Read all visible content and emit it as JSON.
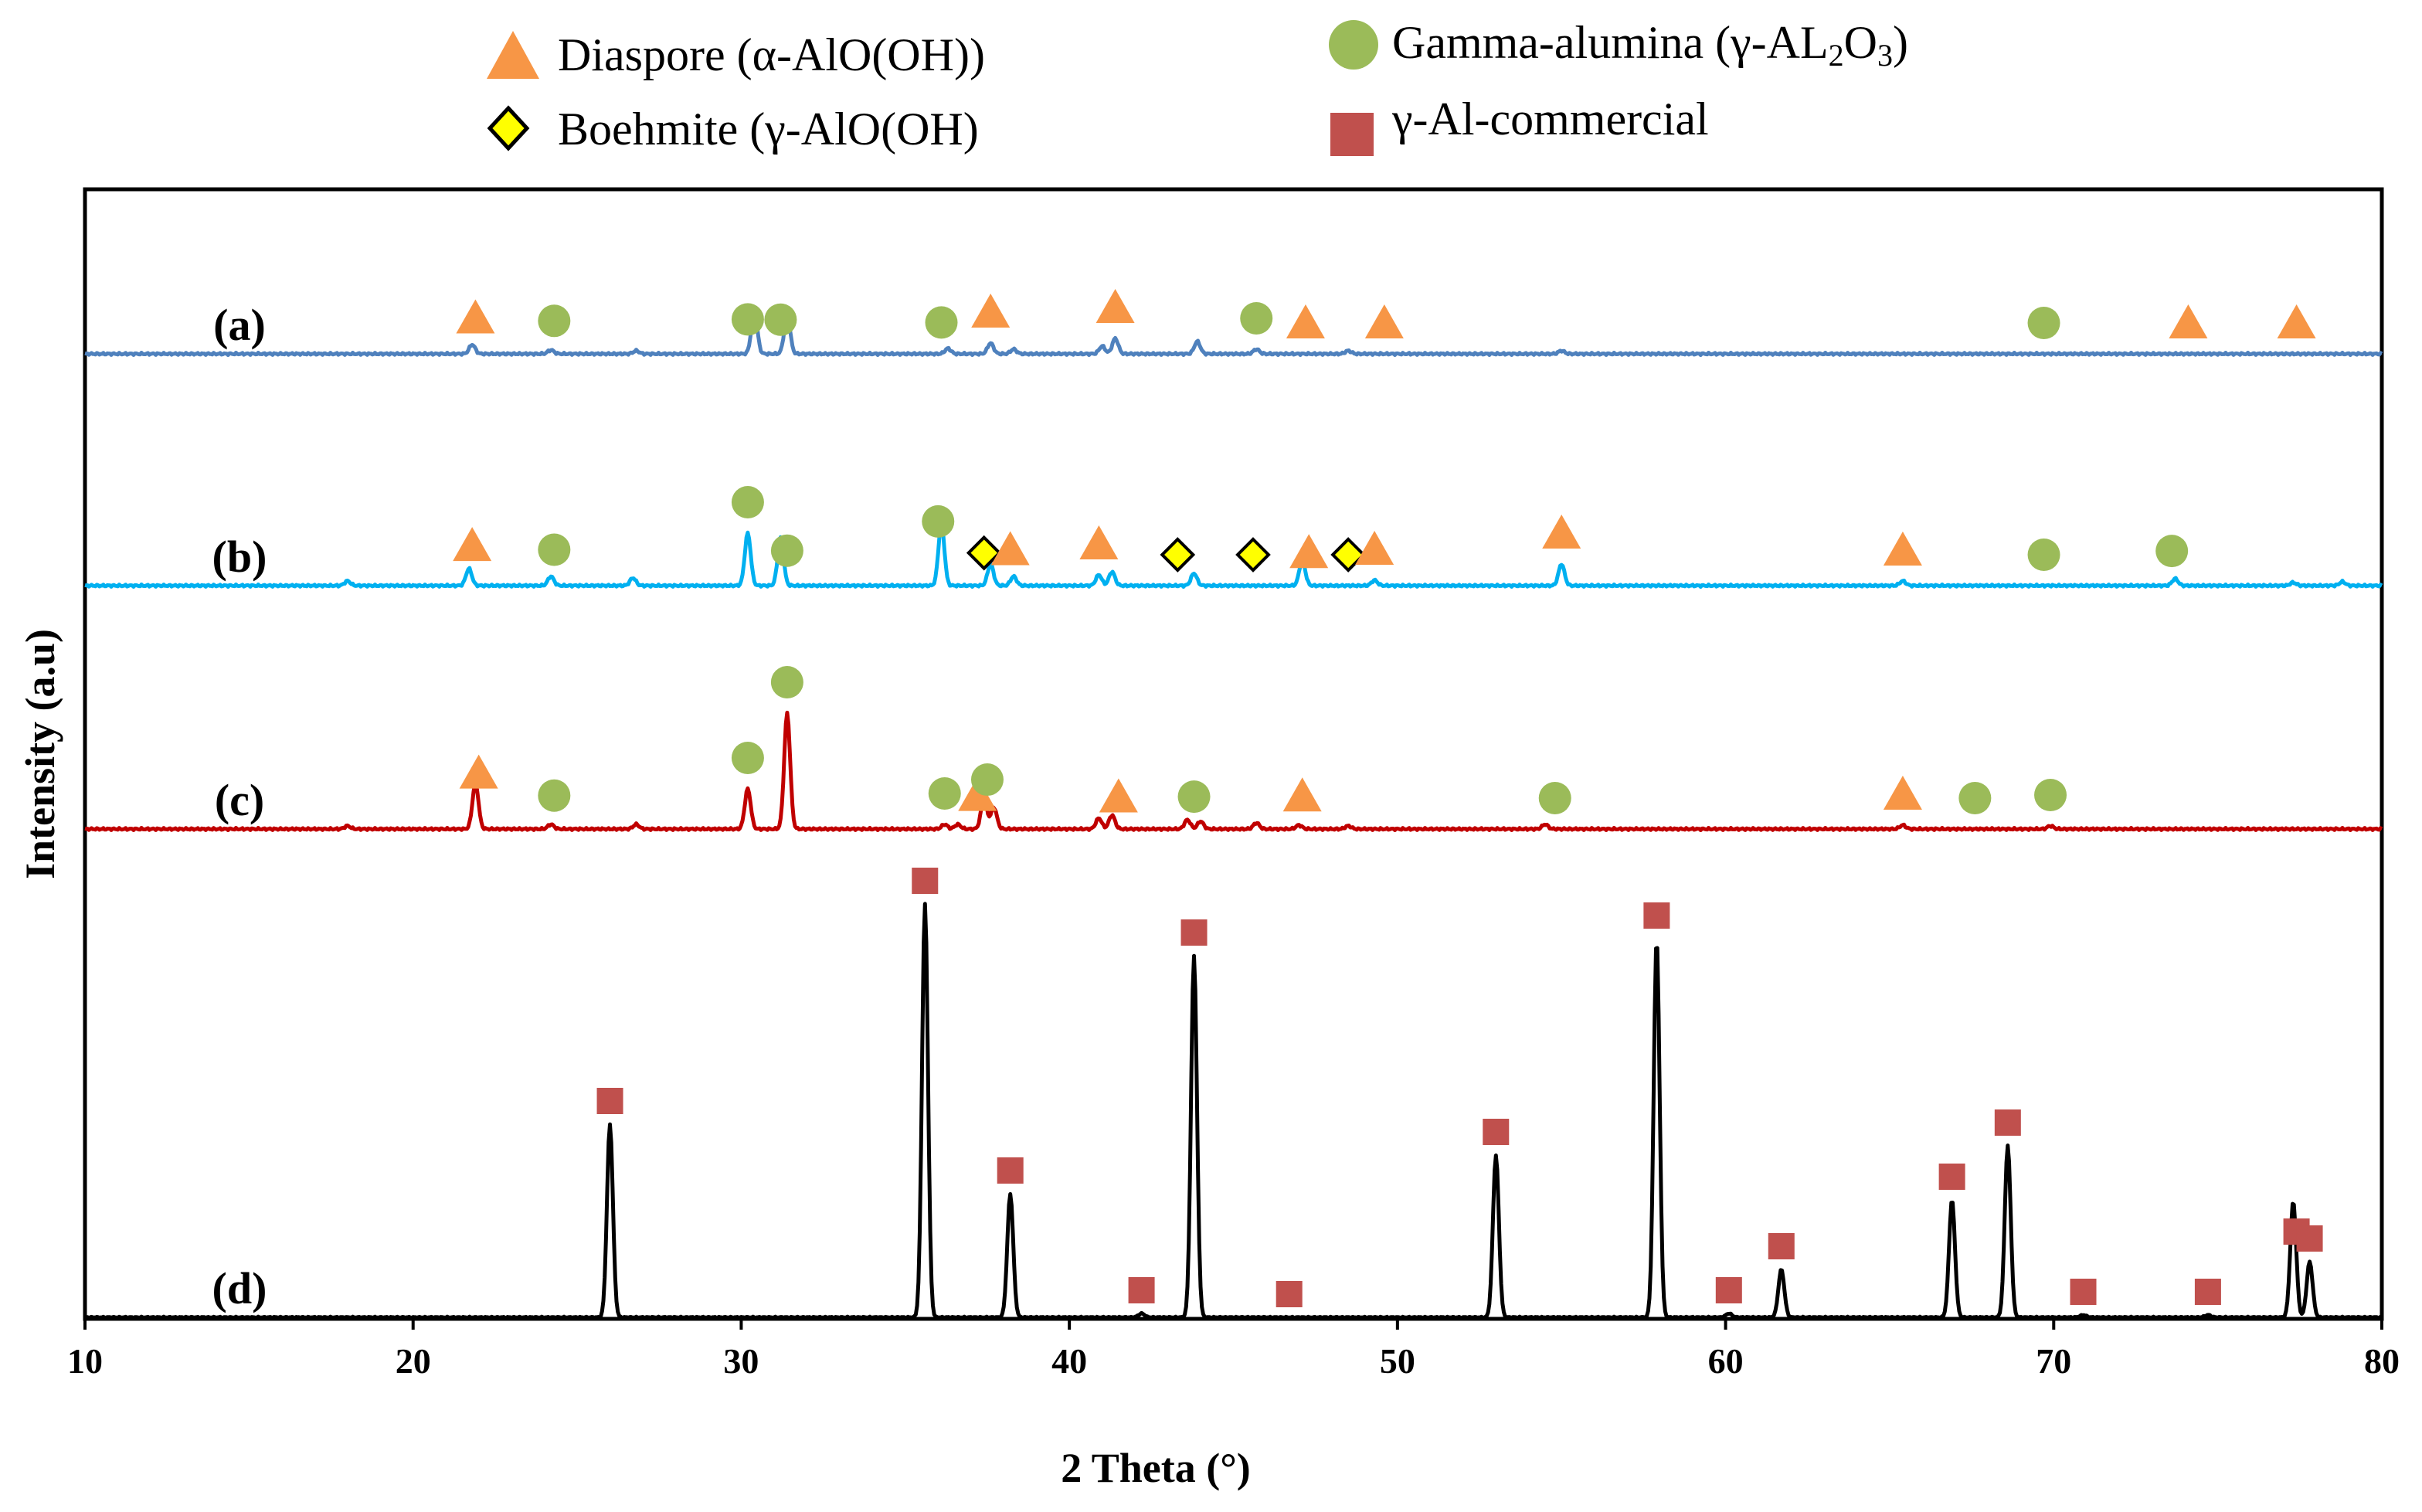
{
  "chart_data": {
    "type": "line",
    "title": "",
    "xlabel": "2 Theta (°)",
    "ylabel": "Intensity (a.u)",
    "xlim": [
      10,
      80
    ],
    "xticks": [
      "10",
      "20",
      "30",
      "40",
      "50",
      "60",
      "70",
      "80"
    ],
    "grid": false,
    "legend": [
      {
        "key": "diaspore",
        "shape": "triangle",
        "color": "#F79646",
        "label": "Diaspore (α-AlO(OH))"
      },
      {
        "key": "boehmite",
        "shape": "diamond",
        "color": "#FFFF00",
        "label": "Boehmite (γ-AlO(OH)"
      },
      {
        "key": "gamma",
        "shape": "circle",
        "color": "#9BBB59",
        "label_prefix": "Gamma-alumina (γ-AL",
        "sub1": "2",
        "label_mid": "O",
        "sub2": "3",
        "label_suffix": ")"
      },
      {
        "key": "commercial",
        "shape": "square",
        "color": "#C0504D",
        "label": "γ-Al-commercial"
      }
    ],
    "series": [
      {
        "name": "(a)",
        "color": "#4F81BD",
        "baseline_intensity": 0,
        "noise": 1.5,
        "marker_offset": 40,
        "peaks": [
          [
            21.8,
            12
          ],
          [
            24.2,
            5
          ],
          [
            26.8,
            4
          ],
          [
            30.4,
            55
          ],
          [
            31.4,
            50
          ],
          [
            36.3,
            7
          ],
          [
            37.6,
            14
          ],
          [
            38.3,
            6
          ],
          [
            41.0,
            10
          ],
          [
            41.4,
            20
          ],
          [
            43.9,
            16
          ],
          [
            45.7,
            6
          ],
          [
            48.5,
            4
          ],
          [
            55.0,
            4
          ]
        ],
        "markers": [
          {
            "type": "diaspore",
            "x": 21.9
          },
          {
            "type": "gamma",
            "x": 24.3
          },
          {
            "type": "gamma",
            "x": 30.2
          },
          {
            "type": "gamma",
            "x": 31.2
          },
          {
            "type": "gamma",
            "x": 36.1
          },
          {
            "type": "diaspore",
            "x": 37.6
          },
          {
            "type": "diaspore",
            "x": 41.4
          },
          {
            "type": "gamma",
            "x": 45.7
          },
          {
            "type": "diaspore",
            "x": 47.2
          },
          {
            "type": "diaspore",
            "x": 49.6
          },
          {
            "type": "gamma",
            "x": 69.7
          },
          {
            "type": "diaspore",
            "x": 74.1
          },
          {
            "type": "diaspore",
            "x": 77.4
          }
        ]
      },
      {
        "name": "(b)",
        "color": "#00B0F0",
        "baseline_intensity": 150,
        "noise": 1.5,
        "marker_offset": 40,
        "peaks": [
          [
            18.0,
            6
          ],
          [
            21.7,
            22
          ],
          [
            24.2,
            12
          ],
          [
            26.7,
            10
          ],
          [
            30.2,
            68
          ],
          [
            31.2,
            62
          ],
          [
            36.1,
            80
          ],
          [
            37.6,
            28
          ],
          [
            38.3,
            12
          ],
          [
            40.9,
            14
          ],
          [
            41.3,
            18
          ],
          [
            43.8,
            16
          ],
          [
            47.1,
            33
          ],
          [
            49.3,
            7
          ],
          [
            55.0,
            28
          ],
          [
            65.4,
            6
          ],
          [
            73.7,
            9
          ],
          [
            77.3,
            4
          ],
          [
            78.8,
            5
          ]
        ],
        "markers": [
          {
            "type": "diaspore",
            "x": 21.8
          },
          {
            "type": "gamma",
            "x": 24.3
          },
          {
            "type": "gamma",
            "x": 30.2
          },
          {
            "type": "gamma",
            "x": 31.4
          },
          {
            "type": "gamma",
            "x": 36.0
          },
          {
            "type": "boehmite",
            "x": 37.4
          },
          {
            "type": "diaspore",
            "x": 38.2
          },
          {
            "type": "diaspore",
            "x": 40.9
          },
          {
            "type": "boehmite",
            "x": 43.3
          },
          {
            "type": "boehmite",
            "x": 45.6
          },
          {
            "type": "diaspore",
            "x": 47.3
          },
          {
            "type": "boehmite",
            "x": 48.5
          },
          {
            "type": "diaspore",
            "x": 49.3
          },
          {
            "type": "diaspore",
            "x": 55.0
          },
          {
            "type": "diaspore",
            "x": 65.4
          },
          {
            "type": "gamma",
            "x": 69.7
          },
          {
            "type": "gamma",
            "x": 73.6
          }
        ]
      },
      {
        "name": "(c)",
        "color": "#C00000",
        "baseline_intensity": -155,
        "noise": 1.5,
        "marker_offset": 40,
        "peaks": [
          [
            18.0,
            4
          ],
          [
            21.9,
            60
          ],
          [
            24.2,
            6
          ],
          [
            26.8,
            6
          ],
          [
            30.2,
            52
          ],
          [
            31.4,
            150
          ],
          [
            36.2,
            6
          ],
          [
            36.6,
            6
          ],
          [
            37.4,
            40
          ],
          [
            37.7,
            28
          ],
          [
            40.9,
            14
          ],
          [
            41.3,
            18
          ],
          [
            43.6,
            12
          ],
          [
            44.0,
            10
          ],
          [
            45.7,
            8
          ],
          [
            47.0,
            5
          ],
          [
            48.5,
            4
          ],
          [
            54.5,
            6
          ],
          [
            65.4,
            5
          ],
          [
            69.9,
            4
          ]
        ],
        "markers": [
          {
            "type": "diaspore",
            "x": 22.0
          },
          {
            "type": "gamma",
            "x": 24.3
          },
          {
            "type": "gamma",
            "x": 30.2
          },
          {
            "type": "gamma",
            "x": 31.4
          },
          {
            "type": "gamma",
            "x": 36.2
          },
          {
            "type": "diaspore",
            "x": 37.2
          },
          {
            "type": "gamma",
            "x": 37.5
          },
          {
            "type": "diaspore",
            "x": 41.5
          },
          {
            "type": "gamma",
            "x": 43.8
          },
          {
            "type": "diaspore",
            "x": 47.1
          },
          {
            "type": "gamma",
            "x": 54.8
          },
          {
            "type": "diaspore",
            "x": 65.4
          },
          {
            "type": "gamma",
            "x": 67.6
          },
          {
            "type": "gamma",
            "x": 69.9
          }
        ]
      },
      {
        "name": "(d)",
        "color": "#000000",
        "baseline_intensity": -472,
        "noise": 0.8,
        "marker_offset": 30,
        "peaks": [
          [
            26.0,
            250
          ],
          [
            35.6,
            535
          ],
          [
            38.2,
            160
          ],
          [
            42.2,
            5
          ],
          [
            43.8,
            468
          ],
          [
            53.0,
            210
          ],
          [
            57.9,
            490
          ],
          [
            60.1,
            5
          ],
          [
            61.7,
            62
          ],
          [
            66.9,
            152
          ],
          [
            68.6,
            222
          ],
          [
            70.9,
            3
          ],
          [
            74.7,
            3
          ],
          [
            77.3,
            150
          ],
          [
            77.8,
            72
          ]
        ],
        "markers": [
          {
            "type": "commercial",
            "x": 26.0
          },
          {
            "type": "commercial",
            "x": 35.6
          },
          {
            "type": "commercial",
            "x": 38.2
          },
          {
            "type": "commercial",
            "x": 42.2
          },
          {
            "type": "commercial",
            "x": 43.8
          },
          {
            "type": "commercial",
            "x": 46.7
          },
          {
            "type": "commercial",
            "x": 53.0
          },
          {
            "type": "commercial",
            "x": 57.9
          },
          {
            "type": "commercial",
            "x": 60.1
          },
          {
            "type": "commercial",
            "x": 61.7
          },
          {
            "type": "commercial",
            "x": 66.9
          },
          {
            "type": "commercial",
            "x": 68.6
          },
          {
            "type": "commercial",
            "x": 70.9
          },
          {
            "type": "commercial",
            "x": 74.7
          },
          {
            "type": "commercial",
            "x": 77.4
          },
          {
            "type": "commercial",
            "x": 77.8
          }
        ]
      }
    ]
  }
}
